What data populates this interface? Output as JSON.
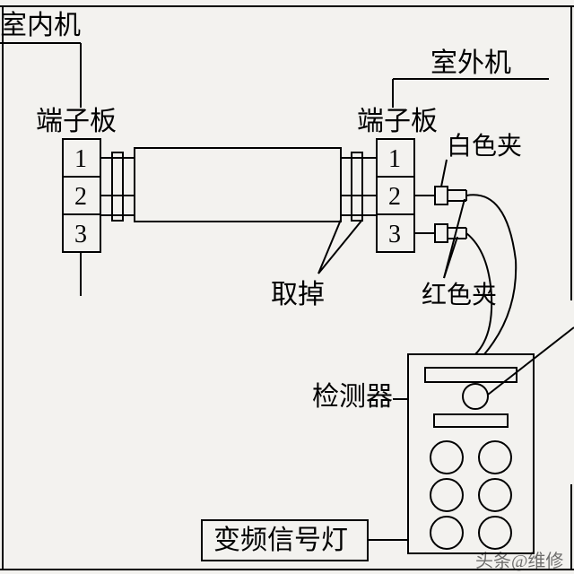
{
  "bg": "#f6f5f2",
  "stroke": "#000000",
  "font": "SimSun, 'Songti SC', serif",
  "labels": {
    "indoor_unit": {
      "text": "室内机",
      "size": 30
    },
    "outdoor_unit": {
      "text": "室外机",
      "size": 30
    },
    "terminal_left": {
      "text": "端子板",
      "size": 30
    },
    "terminal_right": {
      "text": "端子板",
      "size": 30
    },
    "white_clip": {
      "text": "白色夹",
      "size": 28
    },
    "red_clip": {
      "text": "红色夹",
      "size": 28
    },
    "remove": {
      "text": "取掉",
      "size": 30
    },
    "detector": {
      "text": "检测器",
      "size": 30
    },
    "signal_lamp": {
      "text": "变频信号灯",
      "size": 30
    },
    "watermark": {
      "text": "头条@维修",
      "size": 20
    }
  },
  "terminals": {
    "left": {
      "numbers": [
        "1",
        "2",
        "3"
      ],
      "size": 28
    },
    "right": {
      "numbers": [
        "1",
        "2",
        "3"
      ],
      "size": 28
    }
  },
  "detector_box": {
    "circle_r": 14,
    "big_circle_r": 18
  }
}
